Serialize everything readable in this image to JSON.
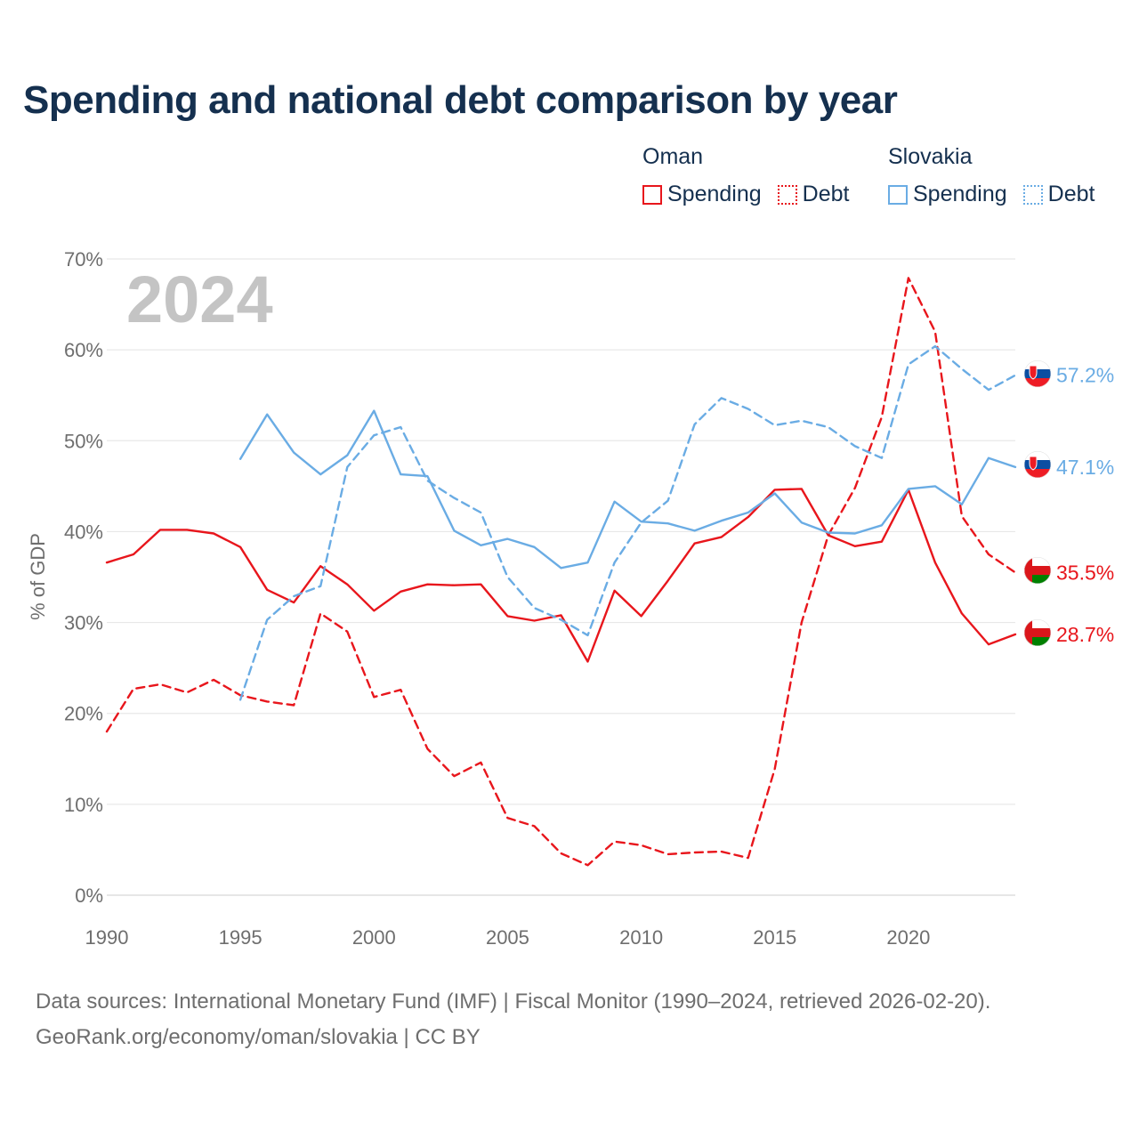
{
  "title": "Spending and national debt comparison by year",
  "legend": {
    "groups": [
      {
        "country": "Oman",
        "spending_label": "Spending",
        "debt_label": "Debt",
        "color": "#e8161c"
      },
      {
        "country": "Slovakia",
        "spending_label": "Spending",
        "debt_label": "Debt",
        "color": "#6aace4"
      }
    ]
  },
  "footer": {
    "line1": "Data sources: International Monetary Fund (IMF) | Fiscal Monitor (1990–2024, retrieved 2026-02-20).",
    "line2": "GeoRank.org/economy/oman/slovakia | CC BY"
  },
  "chart_data": {
    "type": "line",
    "title": "Spending and national debt comparison by year",
    "year_label": "2024",
    "xlabel": "",
    "ylabel": "% of GDP",
    "xlim": [
      1990,
      2024
    ],
    "ylim": [
      0,
      70
    ],
    "x_ticks": [
      1990,
      1995,
      2000,
      2005,
      2010,
      2015,
      2020
    ],
    "y_ticks": [
      0,
      10,
      20,
      30,
      40,
      50,
      60,
      70
    ],
    "y_tick_labels": [
      "0%",
      "10%",
      "20%",
      "30%",
      "40%",
      "50%",
      "60%",
      "70%"
    ],
    "grid": true,
    "series": [
      {
        "name": "Oman Spending",
        "country": "Oman",
        "metric": "Spending",
        "color": "#e8161c",
        "style": "solid",
        "end_label": "28.7%",
        "x": [
          1990,
          1991,
          1992,
          1993,
          1994,
          1995,
          1996,
          1997,
          1998,
          1999,
          2000,
          2001,
          2002,
          2003,
          2004,
          2005,
          2006,
          2007,
          2008,
          2009,
          2010,
          2011,
          2012,
          2013,
          2014,
          2015,
          2016,
          2017,
          2018,
          2019,
          2020,
          2021,
          2022,
          2023,
          2024
        ],
        "values": [
          36.6,
          37.5,
          40.2,
          40.2,
          39.8,
          38.3,
          33.6,
          32.2,
          36.2,
          34.2,
          31.3,
          33.4,
          34.2,
          34.1,
          34.2,
          30.7,
          30.2,
          30.8,
          25.7,
          33.5,
          30.7,
          34.6,
          38.7,
          39.4,
          41.6,
          44.6,
          44.7,
          39.6,
          38.4,
          38.9,
          44.6,
          36.6,
          31.0,
          27.6,
          28.7
        ]
      },
      {
        "name": "Oman Debt",
        "country": "Oman",
        "metric": "Debt",
        "color": "#e8161c",
        "style": "dashed",
        "end_label": "35.5%",
        "x": [
          1990,
          1991,
          1992,
          1993,
          1994,
          1995,
          1996,
          1997,
          1998,
          1999,
          2000,
          2001,
          2002,
          2003,
          2004,
          2005,
          2006,
          2007,
          2008,
          2009,
          2010,
          2011,
          2012,
          2013,
          2014,
          2015,
          2016,
          2017,
          2018,
          2019,
          2020,
          2021,
          2022,
          2023,
          2024
        ],
        "values": [
          18.0,
          22.7,
          23.2,
          22.3,
          23.7,
          22.0,
          21.3,
          20.9,
          31.0,
          29.0,
          21.8,
          22.6,
          16.1,
          13.1,
          14.6,
          8.5,
          7.6,
          4.6,
          3.3,
          5.9,
          5.5,
          4.5,
          4.7,
          4.8,
          4.1,
          13.9,
          30.0,
          39.6,
          44.8,
          52.6,
          67.9,
          62.0,
          41.7,
          37.5,
          35.5
        ]
      },
      {
        "name": "Slovakia Spending",
        "country": "Slovakia",
        "metric": "Spending",
        "color": "#6aace4",
        "style": "solid",
        "end_label": "47.1%",
        "x": [
          1995,
          1996,
          1997,
          1998,
          1999,
          2000,
          2001,
          2002,
          2003,
          2004,
          2005,
          2006,
          2007,
          2008,
          2009,
          2010,
          2011,
          2012,
          2013,
          2014,
          2015,
          2016,
          2017,
          2018,
          2019,
          2020,
          2021,
          2022,
          2023,
          2024
        ],
        "values": [
          48.0,
          52.9,
          48.7,
          46.3,
          48.4,
          53.3,
          46.3,
          46.1,
          40.1,
          38.5,
          39.2,
          38.3,
          36.0,
          36.6,
          43.3,
          41.1,
          40.9,
          40.1,
          41.2,
          42.1,
          44.2,
          41.0,
          39.9,
          39.8,
          40.7,
          44.7,
          45.0,
          43.0,
          48.1,
          47.1
        ]
      },
      {
        "name": "Slovakia Debt",
        "country": "Slovakia",
        "metric": "Debt",
        "color": "#6aace4",
        "style": "dashed",
        "end_label": "57.2%",
        "x": [
          1995,
          1996,
          1997,
          1998,
          1999,
          2000,
          2001,
          2002,
          2003,
          2004,
          2005,
          2006,
          2007,
          2008,
          2009,
          2010,
          2011,
          2012,
          2013,
          2014,
          2015,
          2016,
          2017,
          2018,
          2019,
          2020,
          2021,
          2022,
          2023,
          2024
        ],
        "values": [
          21.5,
          30.3,
          32.9,
          34.0,
          47.1,
          50.6,
          51.5,
          45.6,
          43.7,
          42.1,
          35.0,
          31.6,
          30.3,
          28.6,
          36.6,
          41.0,
          43.4,
          51.8,
          54.7,
          53.5,
          51.7,
          52.2,
          51.5,
          49.4,
          48.1,
          58.4,
          60.4,
          57.9,
          55.6,
          57.2
        ]
      }
    ]
  }
}
